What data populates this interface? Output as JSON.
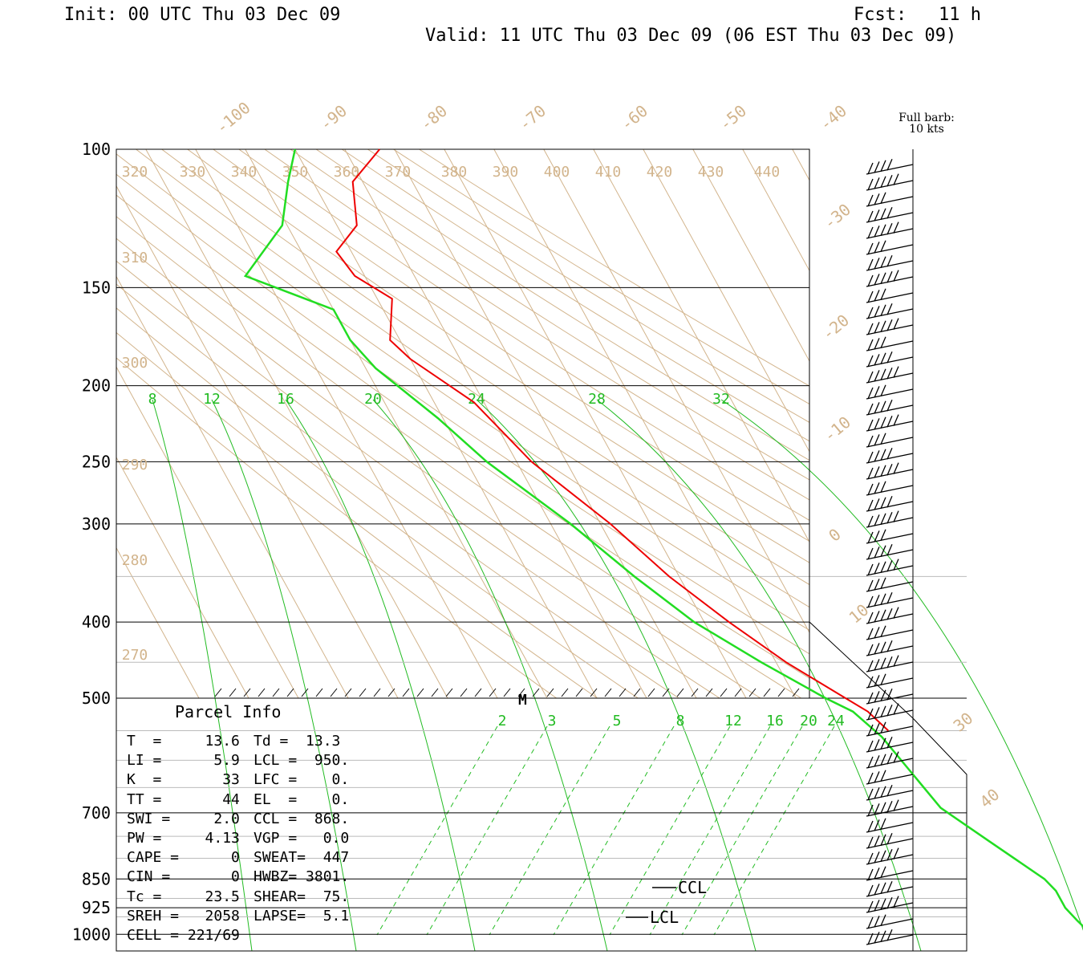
{
  "header": {
    "init": "Init: 00 UTC Thu 03 Dec 09",
    "fcst": "Fcst:   11 h",
    "valid": "Valid: 11 UTC Thu 03 Dec 09 (06 EST Thu 03 Dec 09)"
  },
  "barb_legend": {
    "line1": "Full barb:",
    "line2": "10 kts"
  },
  "chart_data": {
    "type": "line",
    "pressure_labels": [
      "100",
      "150",
      "200",
      "250",
      "300",
      "400",
      "500",
      "700",
      "850",
      "925",
      "1000"
    ],
    "pressure_values": [
      100,
      150,
      200,
      250,
      300,
      400,
      500,
      700,
      850,
      925,
      1000
    ],
    "temp_labels": [
      "-100",
      "-90",
      "-80",
      "-70",
      "-60",
      "-50",
      "-40",
      "-30",
      "-20",
      "-10",
      "0",
      "10",
      "30",
      "40"
    ],
    "theta_labels": [
      "320",
      "330",
      "340",
      "350",
      "360",
      "370",
      "380",
      "390",
      "400",
      "410",
      "420",
      "430",
      "440",
      "310",
      "300",
      "290",
      "280",
      "270"
    ],
    "mixing_ratio_upper_labels": [
      "8",
      "12",
      "16",
      "20",
      "24",
      "28",
      "32"
    ],
    "mixing_ratio_lower_labels": [
      "2",
      "3",
      "5",
      "8",
      "12",
      "16",
      "20",
      "24"
    ],
    "marker_label": "M",
    "ccl_label": "CCL",
    "lcl_label": "LCL",
    "series": [
      {
        "name": "Temperature",
        "color": "#ee0000",
        "points": [
          [
            100,
            -43
          ],
          [
            110,
            -52
          ],
          [
            125,
            -56
          ],
          [
            135,
            -63
          ],
          [
            145,
            -62
          ],
          [
            155,
            -57
          ],
          [
            175,
            -62
          ],
          [
            185,
            -60
          ],
          [
            210,
            -52
          ],
          [
            250,
            -47
          ],
          [
            300,
            -38
          ],
          [
            350,
            -32
          ],
          [
            400,
            -25
          ],
          [
            450,
            -18
          ],
          [
            500,
            -10
          ],
          [
            520,
            -7
          ],
          [
            550,
            -5
          ]
        ]
      },
      {
        "name": "Dewpoint",
        "color": "#22dd22",
        "points": [
          [
            100,
            -60
          ],
          [
            110,
            -65
          ],
          [
            125,
            -71
          ],
          [
            145,
            -84
          ],
          [
            160,
            -70
          ],
          [
            175,
            -70
          ],
          [
            190,
            -68
          ],
          [
            220,
            -61
          ],
          [
            250,
            -56
          ],
          [
            300,
            -46
          ],
          [
            350,
            -39
          ],
          [
            400,
            -32
          ],
          [
            450,
            -23
          ],
          [
            500,
            -14
          ],
          [
            520,
            -10
          ],
          [
            560,
            -7
          ],
          [
            690,
            -3
          ],
          [
            760,
            3
          ],
          [
            850,
            10
          ],
          [
            880,
            11
          ],
          [
            925,
            11
          ],
          [
            960,
            12
          ],
          [
            1000,
            13.3
          ]
        ]
      }
    ]
  },
  "parcel_info": {
    "title": "Parcel Info",
    "rows": [
      [
        "T  =     13.6",
        "Td =  13.3"
      ],
      [
        "LI =      5.9",
        "LCL =  950."
      ],
      [
        "K  =       33",
        "LFC =    0."
      ],
      [
        "TT =       44",
        "EL  =    0."
      ],
      [
        "SWI =     2.0",
        "CCL =  868."
      ],
      [
        "PW =     4.13",
        "VGP =   0.0"
      ],
      [
        "CAPE =      0",
        "SWEAT=  447"
      ],
      [
        "CIN =       0",
        "HWBZ= 3801."
      ],
      [
        "Tc =     23.5",
        "SHEAR=  75."
      ],
      [
        "SREH =   2058",
        "LAPSE=  5.1"
      ],
      [
        "CELL = 221/69",
        ""
      ]
    ]
  }
}
